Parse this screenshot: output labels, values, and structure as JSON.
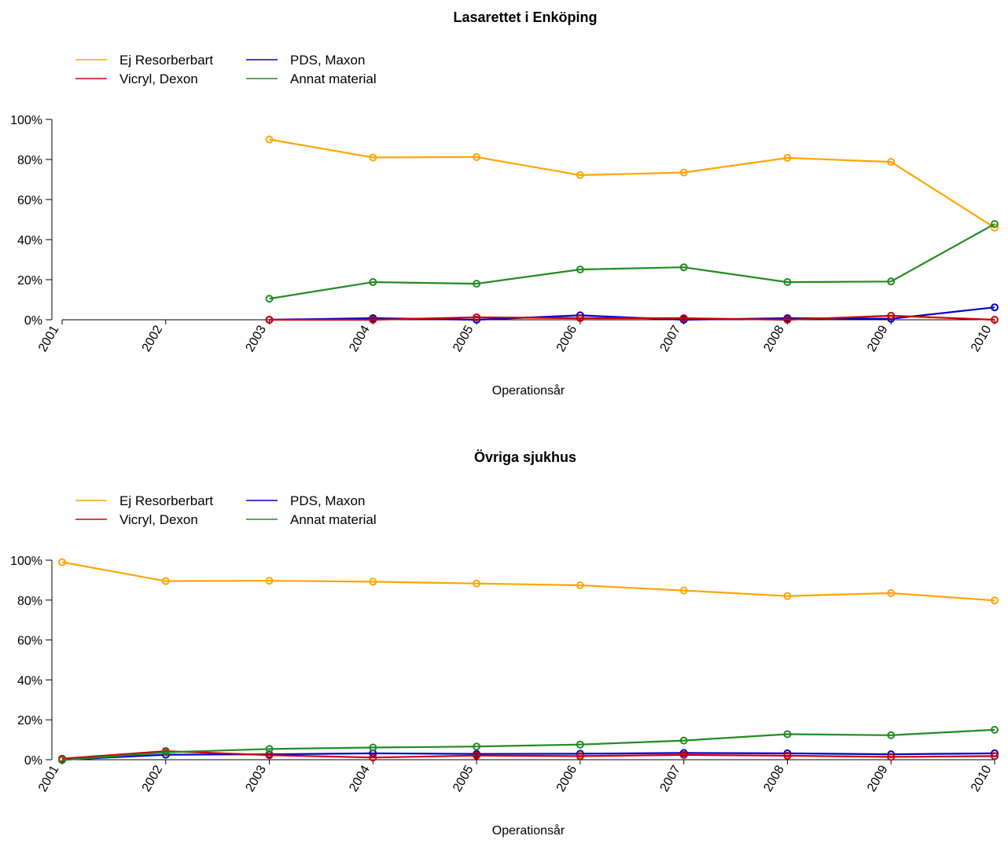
{
  "chart_data": [
    {
      "type": "line",
      "title": "Lasarettet i Enköping",
      "xlabel": "Operationsår",
      "ylabel": "",
      "categories": [
        "2001",
        "2002",
        "2003",
        "2004",
        "2005",
        "2006",
        "2007",
        "2008",
        "2009",
        "2010"
      ],
      "yticks": [
        "0%",
        "20%",
        "40%",
        "60%",
        "80%",
        "100%"
      ],
      "ylim": [
        0,
        100
      ],
      "legend_position": "top-left",
      "grid": false,
      "series": [
        {
          "name": "Ej Resorberbart",
          "color": "#FFA500",
          "values": [
            null,
            null,
            90,
            81,
            81.2,
            72.2,
            73.5,
            80.8,
            78.8,
            46
          ]
        },
        {
          "name": "PDS, Maxon",
          "color": "#0000CD",
          "values": [
            null,
            null,
            0,
            0.8,
            0,
            2.2,
            0,
            0.8,
            0.5,
            6.2
          ]
        },
        {
          "name": "Vicryl, Dexon",
          "color": "#CD0000",
          "values": [
            null,
            null,
            0,
            0,
            1.2,
            0.8,
            0.8,
            0,
            2,
            0
          ]
        },
        {
          "name": "Annat material",
          "color": "#228B22",
          "values": [
            null,
            null,
            10.5,
            18.8,
            18,
            25.1,
            26.2,
            18.8,
            19.1,
            47.8
          ]
        }
      ]
    },
    {
      "type": "line",
      "title": "Övriga sjukhus",
      "xlabel": "Operationsår",
      "ylabel": "",
      "categories": [
        "2001",
        "2002",
        "2003",
        "2004",
        "2005",
        "2006",
        "2007",
        "2008",
        "2009",
        "2010"
      ],
      "yticks": [
        "0%",
        "20%",
        "40%",
        "60%",
        "80%",
        "100%"
      ],
      "ylim": [
        0,
        100
      ],
      "legend_position": "top-left",
      "grid": false,
      "series": [
        {
          "name": "Ej Resorberbart",
          "color": "#FFA500",
          "values": [
            99,
            89.5,
            89.7,
            89.2,
            88.3,
            87.4,
            84.8,
            82,
            83.5,
            79.8
          ]
        },
        {
          "name": "PDS, Maxon",
          "color": "#0000CD",
          "values": [
            0,
            2.5,
            2.7,
            3.2,
            2.9,
            3,
            3.4,
            3.2,
            2.7,
            3.2
          ]
        },
        {
          "name": "Vicryl, Dexon",
          "color": "#CD0000",
          "values": [
            0.5,
            4.3,
            2.3,
            1.1,
            2.1,
            1.8,
            2.4,
            2,
            1.4,
            1.8
          ]
        },
        {
          "name": "Annat material",
          "color": "#228B22",
          "values": [
            -0.2,
            3.7,
            5.4,
            6.1,
            6.6,
            7.6,
            9.6,
            12.8,
            12.3,
            15
          ]
        }
      ]
    }
  ]
}
